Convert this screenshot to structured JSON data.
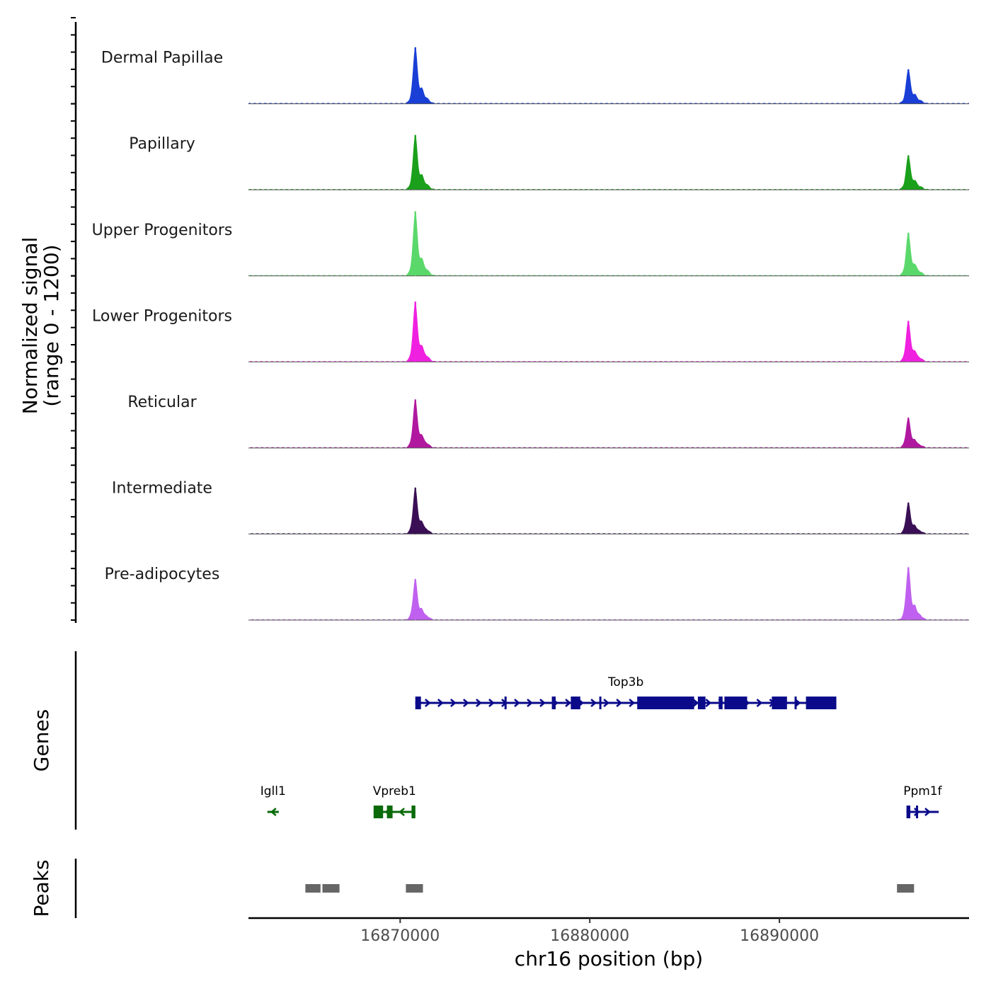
{
  "chart_data": {
    "type": "area",
    "title": "",
    "ylabel_line1": "Normalized signal",
    "ylabel_line2": "(range 0 - 1200)",
    "ylim": [
      0,
      1200
    ],
    "xlabel": "chr16 position (bp)",
    "xlim": [
      16862000,
      16900000
    ],
    "xticks": [
      16870000,
      16880000,
      16890000
    ],
    "xtick_labels": [
      "16870000",
      "16880000",
      "16890000"
    ],
    "genes_label": "Genes",
    "peaks_label": "Peaks",
    "tracks": [
      {
        "name": "Dermal Papillae",
        "color": "#1a3fd6",
        "peaks": [
          {
            "pos": 16870800,
            "height": 1050
          },
          {
            "pos": 16896800,
            "height": 640
          }
        ]
      },
      {
        "name": "Papillary",
        "color": "#1aa01a",
        "peaks": [
          {
            "pos": 16870800,
            "height": 1020
          },
          {
            "pos": 16896800,
            "height": 640
          }
        ]
      },
      {
        "name": "Upper Progenitors",
        "color": "#5ad86a",
        "peaks": [
          {
            "pos": 16870800,
            "height": 1200
          },
          {
            "pos": 16896800,
            "height": 800
          }
        ]
      },
      {
        "name": "Lower Progenitors",
        "color": "#f020e0",
        "peaks": [
          {
            "pos": 16870800,
            "height": 1120
          },
          {
            "pos": 16896800,
            "height": 760
          }
        ]
      },
      {
        "name": "Reticular",
        "color": "#b0199f",
        "peaks": [
          {
            "pos": 16870800,
            "height": 900
          },
          {
            "pos": 16896800,
            "height": 560
          }
        ]
      },
      {
        "name": "Intermediate",
        "color": "#3a0f55",
        "peaks": [
          {
            "pos": 16870800,
            "height": 860
          },
          {
            "pos": 16896800,
            "height": 580
          }
        ]
      },
      {
        "name": "Pre-adipocytes",
        "color": "#c060f0",
        "peaks": [
          {
            "pos": 16870800,
            "height": 760
          },
          {
            "pos": 16896800,
            "height": 980
          }
        ]
      }
    ],
    "genes": [
      {
        "name": "Top3b",
        "start": 16870800,
        "end": 16893000,
        "strand": "+",
        "color": "#0a0a8a",
        "row": 1,
        "exons": [
          [
            16870800,
            16871100
          ],
          [
            16875500,
            16875600
          ],
          [
            16878000,
            16878200
          ],
          [
            16879000,
            16879500
          ],
          [
            16880500,
            16880600
          ],
          [
            16882500,
            16885500
          ],
          [
            16885700,
            16886100
          ],
          [
            16886800,
            16887000
          ],
          [
            16887100,
            16888300
          ],
          [
            16889600,
            16890400
          ],
          [
            16890800,
            16890900
          ],
          [
            16891400,
            16893000
          ]
        ]
      },
      {
        "name": "Igll1",
        "start": 16863000,
        "end": 16863600,
        "strand": "-",
        "color": "#0a6a0a",
        "row": 2,
        "exons": []
      },
      {
        "name": "Vpreb1",
        "start": 16868600,
        "end": 16870800,
        "strand": "-",
        "color": "#0a6a0a",
        "row": 2,
        "exons": [
          [
            16868600,
            16869100
          ],
          [
            16869300,
            16869600
          ],
          [
            16870600,
            16870800
          ]
        ]
      },
      {
        "name": "Ppm1f",
        "start": 16896700,
        "end": 16898400,
        "strand": "+",
        "color": "#0a0a8a",
        "row": 2,
        "exons": [
          [
            16896700,
            16896900
          ],
          [
            16897200,
            16897300
          ]
        ]
      }
    ],
    "peaks": [
      {
        "start": 16865000,
        "end": 16865800
      },
      {
        "start": 16865900,
        "end": 16866800
      },
      {
        "start": 16870300,
        "end": 16871200
      },
      {
        "start": 16896200,
        "end": 16897100
      }
    ]
  }
}
